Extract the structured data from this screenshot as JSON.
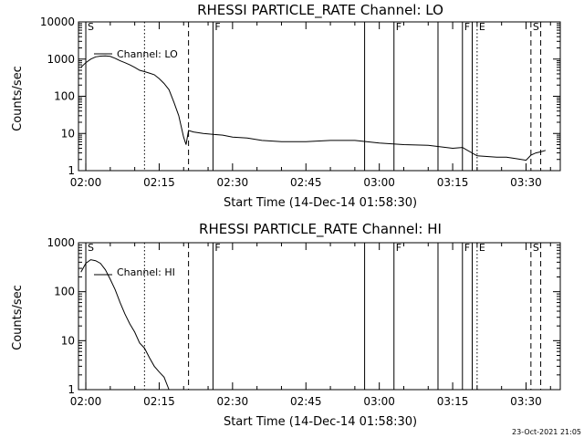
{
  "footer_date": "23-Oct-2021 21:05",
  "chart_data": [
    {
      "type": "line",
      "title": "RHESSI PARTICLE_RATE Channel: LO",
      "xlabel": "Start Time (14-Dec-14 01:58:30)",
      "ylabel": "Counts/sec",
      "yscale": "log",
      "xlim": [
        "01:58:30",
        "03:37:00"
      ],
      "ylim": [
        1,
        10000
      ],
      "x_ticks": [
        "02:00",
        "02:15",
        "02:30",
        "02:45",
        "03:00",
        "03:15",
        "03:30"
      ],
      "y_ticks": [
        "1",
        "10",
        "100",
        "1000",
        "10000"
      ],
      "legend_label": "Channel: LO",
      "legend_position": "top-left",
      "series": [
        {
          "x": [
            "01:59",
            "02:00",
            "02:01",
            "02:02",
            "02:03",
            "02:04",
            "02:05",
            "02:06",
            "02:07",
            "02:08",
            "02:09",
            "02:10",
            "02:11",
            "02:12",
            "02:13",
            "02:14",
            "02:15",
            "02:16",
            "02:17",
            "02:18",
            "02:19",
            "02:20",
            "02:20:30",
            "02:21",
            "02:22",
            "02:24",
            "02:26",
            "02:28",
            "02:30",
            "02:33",
            "02:36",
            "02:40",
            "02:45",
            "02:50",
            "02:55",
            "03:00",
            "03:05",
            "03:10",
            "03:15",
            "03:17",
            "03:20",
            "03:22",
            "03:24",
            "03:26",
            "03:28",
            "03:30",
            "03:31",
            "03:32",
            "03:33",
            "03:34"
          ],
          "y": [
            600,
            800,
            1000,
            1150,
            1200,
            1220,
            1180,
            1050,
            900,
            800,
            700,
            600,
            500,
            460,
            420,
            380,
            300,
            220,
            150,
            70,
            30,
            8,
            5,
            12,
            11,
            10,
            9.5,
            9,
            8,
            7.5,
            6.5,
            6,
            6,
            6.5,
            6.5,
            5.5,
            5,
            4.8,
            4,
            4.2,
            2.5,
            2.4,
            2.3,
            2.3,
            2.1,
            1.9,
            2.6,
            3,
            3.2,
            3.5
          ]
        }
      ],
      "markers": [
        {
          "time": "02:00",
          "style": "solid",
          "label": "S"
        },
        {
          "time": "02:12",
          "style": "dotted",
          "label": ""
        },
        {
          "time": "02:21",
          "style": "dashed",
          "label": ""
        },
        {
          "time": "02:26",
          "style": "solid",
          "label": "F"
        },
        {
          "time": "02:57",
          "style": "solid",
          "label": ""
        },
        {
          "time": "03:03",
          "style": "solid",
          "label": "F"
        },
        {
          "time": "03:12",
          "style": "solid",
          "label": ""
        },
        {
          "time": "03:17",
          "style": "solid",
          "label": "F"
        },
        {
          "time": "03:19",
          "style": "solid",
          "label": ""
        },
        {
          "time": "03:20",
          "style": "dotted",
          "label": "E"
        },
        {
          "time": "03:31",
          "style": "dashed",
          "label": "S"
        },
        {
          "time": "03:33",
          "style": "dashed",
          "label": ""
        }
      ]
    },
    {
      "type": "line",
      "title": "RHESSI PARTICLE_RATE Channel: HI",
      "xlabel": "Start Time (14-Dec-14 01:58:30)",
      "ylabel": "Counts/sec",
      "yscale": "log",
      "xlim": [
        "01:58:30",
        "03:37:00"
      ],
      "ylim": [
        1,
        1000
      ],
      "x_ticks": [
        "02:00",
        "02:15",
        "02:30",
        "02:45",
        "03:00",
        "03:15",
        "03:30"
      ],
      "y_ticks": [
        "1",
        "10",
        "100",
        "1000"
      ],
      "legend_label": "Channel: HI",
      "legend_position": "top-left",
      "series": [
        {
          "x": [
            "01:59",
            "02:00",
            "02:01",
            "02:02",
            "02:03",
            "02:04",
            "02:05",
            "02:06",
            "02:07",
            "02:08",
            "02:09",
            "02:10",
            "02:11",
            "02:12",
            "02:13",
            "02:14",
            "02:15",
            "02:16",
            "02:17"
          ],
          "y": [
            250,
            380,
            450,
            430,
            380,
            280,
            180,
            110,
            60,
            35,
            22,
            15,
            9,
            7,
            4.5,
            3,
            2.3,
            1.8,
            1
          ]
        }
      ],
      "markers": [
        {
          "time": "02:00",
          "style": "solid",
          "label": "S"
        },
        {
          "time": "02:12",
          "style": "dotted",
          "label": ""
        },
        {
          "time": "02:21",
          "style": "dashed",
          "label": ""
        },
        {
          "time": "02:26",
          "style": "solid",
          "label": "F"
        },
        {
          "time": "02:57",
          "style": "solid",
          "label": ""
        },
        {
          "time": "03:03",
          "style": "solid",
          "label": "F"
        },
        {
          "time": "03:12",
          "style": "solid",
          "label": ""
        },
        {
          "time": "03:17",
          "style": "solid",
          "label": "F"
        },
        {
          "time": "03:19",
          "style": "solid",
          "label": ""
        },
        {
          "time": "03:20",
          "style": "dotted",
          "label": "E"
        },
        {
          "time": "03:31",
          "style": "dashed",
          "label": "S"
        },
        {
          "time": "03:33",
          "style": "dashed",
          "label": ""
        }
      ]
    }
  ]
}
